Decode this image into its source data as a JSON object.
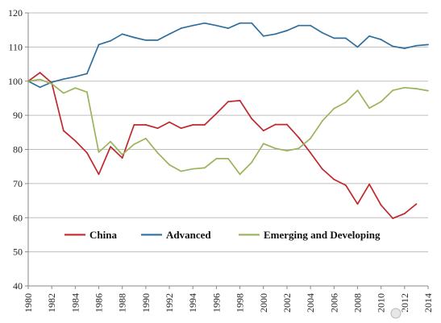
{
  "chart_data": {
    "type": "line",
    "title": "",
    "xlabel": "",
    "ylabel": "",
    "ylim": [
      40,
      120
    ],
    "y_ticks": [
      40,
      50,
      60,
      70,
      80,
      90,
      100,
      110,
      120
    ],
    "x_ticks": [
      1980,
      1982,
      1984,
      1986,
      1988,
      1990,
      1992,
      1994,
      1996,
      1998,
      2000,
      2002,
      2004,
      2006,
      2008,
      2010,
      2012,
      2014
    ],
    "x_tick_labels": [
      "1980",
      "1982",
      "1984",
      "1986",
      "1988",
      "1990",
      "1992",
      "1994",
      "1996",
      "1998",
      "2000",
      "2002",
      "2004",
      "2006",
      "2008",
      "2010",
      "2012",
      "2014"
    ],
    "grid": true,
    "legend_position": "bottom-center",
    "x": [
      1980,
      1981,
      1982,
      1983,
      1984,
      1985,
      1986,
      1987,
      1988,
      1989,
      1990,
      1991,
      1992,
      1993,
      1994,
      1995,
      1996,
      1997,
      1998,
      1999,
      2000,
      2001,
      2002,
      2003,
      2004,
      2005,
      2006,
      2007,
      2008,
      2009,
      2010,
      2011,
      2012,
      2013,
      2014
    ],
    "series": [
      {
        "name": "China",
        "color": "#c0282d",
        "values": [
          100,
          102.5,
          99.5,
          85.5,
          82.5,
          79,
          72.7,
          80.8,
          77.5,
          87.2,
          87.2,
          86.2,
          88,
          86.2,
          87.2,
          87.2,
          90.5,
          94,
          94.3,
          89,
          85.5,
          87.3,
          87.3,
          83.5,
          79,
          74.3,
          71.2,
          69.5,
          64,
          69.8,
          63.7,
          59.8,
          61.2,
          64,
          null
        ]
      },
      {
        "name": "Advanced",
        "color": "#2e6e9e",
        "values": [
          100,
          98.2,
          99.7,
          100.6,
          101.3,
          102.2,
          110.7,
          111.8,
          113.8,
          112.8,
          112,
          112,
          113.8,
          115.5,
          116.3,
          117,
          116.3,
          115.5,
          117,
          117,
          113.2,
          113.8,
          114.8,
          116.3,
          116.3,
          114.2,
          112.6,
          112.6,
          110,
          113.2,
          112.2,
          110.2,
          109.6,
          110.4,
          110.7
        ]
      },
      {
        "name": "Emerging and Developing",
        "color": "#9bb35a",
        "values": [
          100,
          100.5,
          99.2,
          96.5,
          98,
          96.8,
          79.2,
          82.3,
          78.5,
          81.5,
          83.2,
          79,
          75.5,
          73.6,
          74.3,
          74.6,
          77.3,
          77.3,
          72.7,
          76.2,
          81.7,
          80.3,
          79.6,
          80.3,
          83.2,
          88.3,
          92,
          93.8,
          97.3,
          92.1,
          94,
          97.3,
          98.1,
          97.8,
          97.2
        ]
      }
    ]
  },
  "watermark": {
    "label": "保山"
  }
}
